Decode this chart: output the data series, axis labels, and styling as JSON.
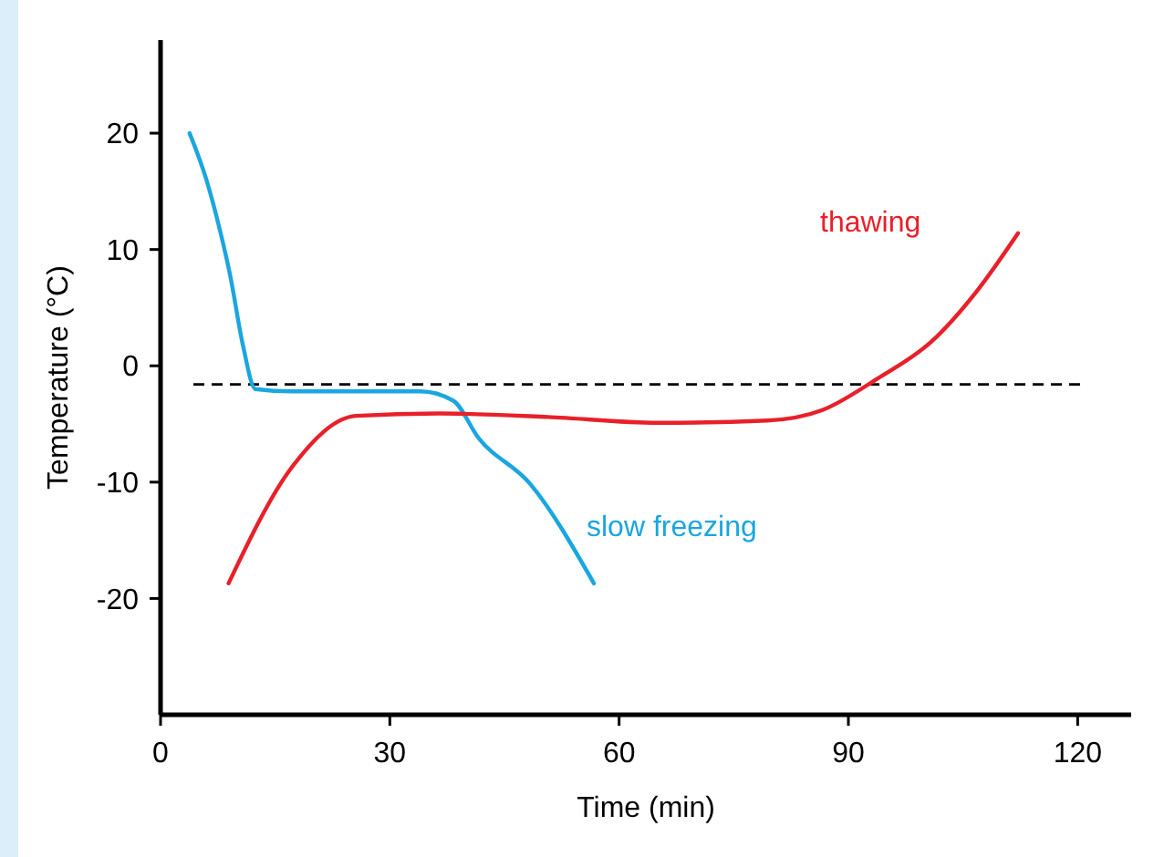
{
  "chart_data": {
    "type": "line",
    "xlabel": "Time (min)",
    "ylabel": "Temperature (°C)",
    "xlim": [
      0,
      127
    ],
    "ylim": [
      -30,
      28
    ],
    "xticks": [
      0,
      30,
      60,
      90,
      120
    ],
    "yticks": [
      -20,
      -10,
      0,
      10,
      20
    ],
    "grid": false,
    "line_style": "solid",
    "series": [
      {
        "name": "slow freezing",
        "color": "#1aa6e0",
        "x": [
          3.8,
          6,
          7.9,
          9.1,
          10.8,
          12.4,
          17.2,
          34,
          38.3,
          41.6,
          48.3,
          56.7
        ],
        "values": [
          20,
          16,
          11.3,
          7.8,
          1.7,
          -2,
          -2.2,
          -2.2,
          -3,
          -6.2,
          -10.1,
          -18.7
        ]
      },
      {
        "name": "thawing",
        "color": "#e8202a",
        "x": [
          8.9,
          17.2,
          25.6,
          36.4,
          50.7,
          65,
          79.4,
          86.6,
          93.8,
          100.9,
          106.9,
          112.2
        ],
        "values": [
          -18.7,
          -8.7,
          -4.3,
          -4.1,
          -4.4,
          -4.9,
          -4.7,
          -3.8,
          -1.1,
          2.1,
          6.5,
          11.4
        ]
      }
    ],
    "ref_lines": [
      {
        "axis": "y",
        "value": -1.6,
        "color": "#000000",
        "line_style": "dashed"
      }
    ]
  }
}
